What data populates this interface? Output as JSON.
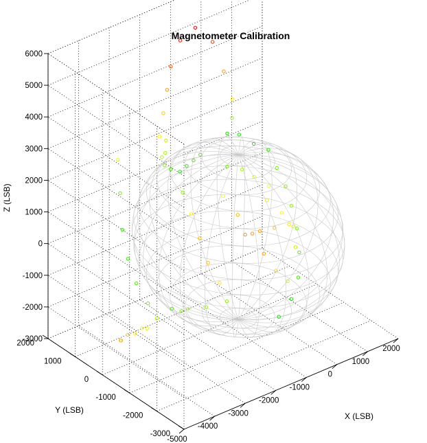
{
  "chart_data": {
    "type": "scatter",
    "projection": "3d",
    "title": "Magnetometer Calibration",
    "xlabel": "X (LSB)",
    "ylabel": "Y (LSB)",
    "zlabel": "Z (LSB)",
    "xlim": [
      -5000,
      2000
    ],
    "ylim": [
      -3000,
      2000
    ],
    "zlim": [
      -3000,
      6000
    ],
    "xticks": [
      "-5000",
      "-4000",
      "-3000",
      "-2000",
      "-1000",
      "0",
      "1000",
      "2000"
    ],
    "yticks": [
      "-3000",
      "-2000",
      "-1000",
      "0",
      "1000",
      "2000"
    ],
    "zticks": [
      "-3000",
      "-2000",
      "-1000",
      "0",
      "1000",
      "2000",
      "3000",
      "4000",
      "5000",
      "6000"
    ],
    "grid": true,
    "sphere_wireframe": {
      "center": [
        -1000,
        -500,
        0
      ],
      "radius": 2600,
      "color": "#c8c8c8"
    },
    "color_scale": [
      "#ff0000",
      "#ff8c00",
      "#ffff00",
      "#00e000"
    ],
    "series": [
      {
        "marker": "circle-open",
        "points": [
          [
            -2600,
            600,
            3200
          ],
          [
            -2300,
            800,
            3700
          ],
          [
            -2000,
            1000,
            4200
          ],
          [
            -1700,
            1200,
            4700
          ],
          [
            -1300,
            1300,
            5300
          ],
          [
            -900,
            1200,
            5600
          ],
          [
            -600,
            900,
            5200
          ],
          [
            -500,
            600,
            4400
          ],
          [
            -400,
            400,
            3600
          ],
          [
            -500,
            300,
            3100
          ],
          [
            -2700,
            400,
            2700
          ],
          [
            -2500,
            300,
            2300
          ],
          [
            -2200,
            300,
            2100
          ],
          [
            -1800,
            500,
            2000
          ],
          [
            -1400,
            700,
            1900
          ],
          [
            -1000,
            900,
            1800
          ],
          [
            -300,
            700,
            2300
          ],
          [
            0,
            600,
            2200
          ],
          [
            300,
            400,
            1900
          ],
          [
            600,
            200,
            1700
          ],
          [
            700,
            0,
            1200
          ],
          [
            900,
            -100,
            600
          ],
          [
            1000,
            -200,
            0
          ],
          [
            1000,
            -400,
            -600
          ],
          [
            900,
            -600,
            -1200
          ],
          [
            600,
            -900,
            -1700
          ],
          [
            200,
            -1100,
            -2100
          ],
          [
            -300,
            -1200,
            -2400
          ],
          [
            -2900,
            1800,
            1900
          ],
          [
            -3000,
            1600,
            1000
          ],
          [
            -3100,
            1400,
            0
          ],
          [
            -3100,
            1200,
            -800
          ],
          [
            -3000,
            1000,
            -1500
          ],
          [
            -2800,
            800,
            -2100
          ],
          [
            -2600,
            700,
            -2600
          ],
          [
            -2900,
            900,
            -2900
          ],
          [
            -3200,
            1100,
            -3100
          ],
          [
            -3500,
            1000,
            -3100
          ],
          [
            -3700,
            800,
            -2900
          ],
          [
            -3400,
            600,
            -2700
          ],
          [
            -3100,
            500,
            -2600
          ],
          [
            -2200,
            600,
            -2400
          ],
          [
            -1800,
            700,
            -2700
          ],
          [
            -1400,
            900,
            -2900
          ],
          [
            -900,
            800,
            -3000
          ],
          [
            -400,
            600,
            -2900
          ],
          [
            -1500,
            -500,
            1500
          ],
          [
            -1200,
            -700,
            900
          ],
          [
            -900,
            -900,
            300
          ],
          [
            -700,
            -1100,
            -300
          ],
          [
            -400,
            -1200,
            -900
          ],
          [
            -100,
            -1300,
            -1300
          ],
          [
            -2200,
            200,
            1500
          ],
          [
            -2100,
            0,
            900
          ],
          [
            -2000,
            -200,
            200
          ],
          [
            -1900,
            -400,
            -500
          ],
          [
            -1700,
            -600,
            -1100
          ],
          [
            200,
            -200,
            500
          ],
          [
            500,
            -400,
            100
          ],
          [
            700,
            -600,
            -300
          ],
          [
            600,
            -800,
            -800
          ],
          [
            -600,
            -300,
            -200
          ],
          [
            -300,
            -500,
            -100
          ],
          [
            0,
            -700,
            0
          ],
          [
            300,
            -900,
            100
          ],
          [
            -2700,
            300,
            2500
          ],
          [
            -2500,
            500,
            2700
          ],
          [
            -2300,
            700,
            2900
          ],
          [
            -1100,
            -200,
            2100
          ],
          [
            -700,
            -300,
            1900
          ],
          [
            -400,
            -400,
            1600
          ],
          [
            -100,
            -600,
            1300
          ]
        ]
      }
    ]
  }
}
